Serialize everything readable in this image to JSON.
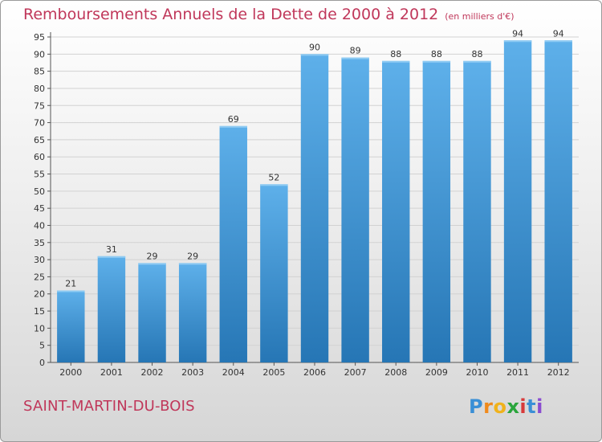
{
  "header": {
    "title": "Remboursements Annuels de la Dette de 2000 à 2012",
    "unit": "(en milliers d'€)"
  },
  "footer": {
    "city": "SAINT-MARTIN-DU-BOIS",
    "logo_letters": [
      "P",
      "r",
      "o",
      "x",
      "i",
      "t",
      "i"
    ]
  },
  "colors": {
    "bar_top": "#5eb0ea",
    "bar_bottom": "#2676b5",
    "title": "#c0375a"
  },
  "chart_data": {
    "type": "bar",
    "title": "Remboursements Annuels de la Dette de 2000 à 2012",
    "categories": [
      "2000",
      "2001",
      "2002",
      "2003",
      "2004",
      "2005",
      "2006",
      "2007",
      "2008",
      "2009",
      "2010",
      "2011",
      "2012"
    ],
    "values": [
      21,
      31,
      29,
      29,
      69,
      52,
      90,
      89,
      88,
      88,
      88,
      94,
      94
    ],
    "ylim": [
      0,
      95
    ],
    "yticks": [
      0,
      5,
      10,
      15,
      20,
      25,
      30,
      35,
      40,
      45,
      50,
      55,
      60,
      65,
      70,
      75,
      80,
      85,
      90,
      95
    ],
    "grid": true,
    "legend": "none"
  }
}
